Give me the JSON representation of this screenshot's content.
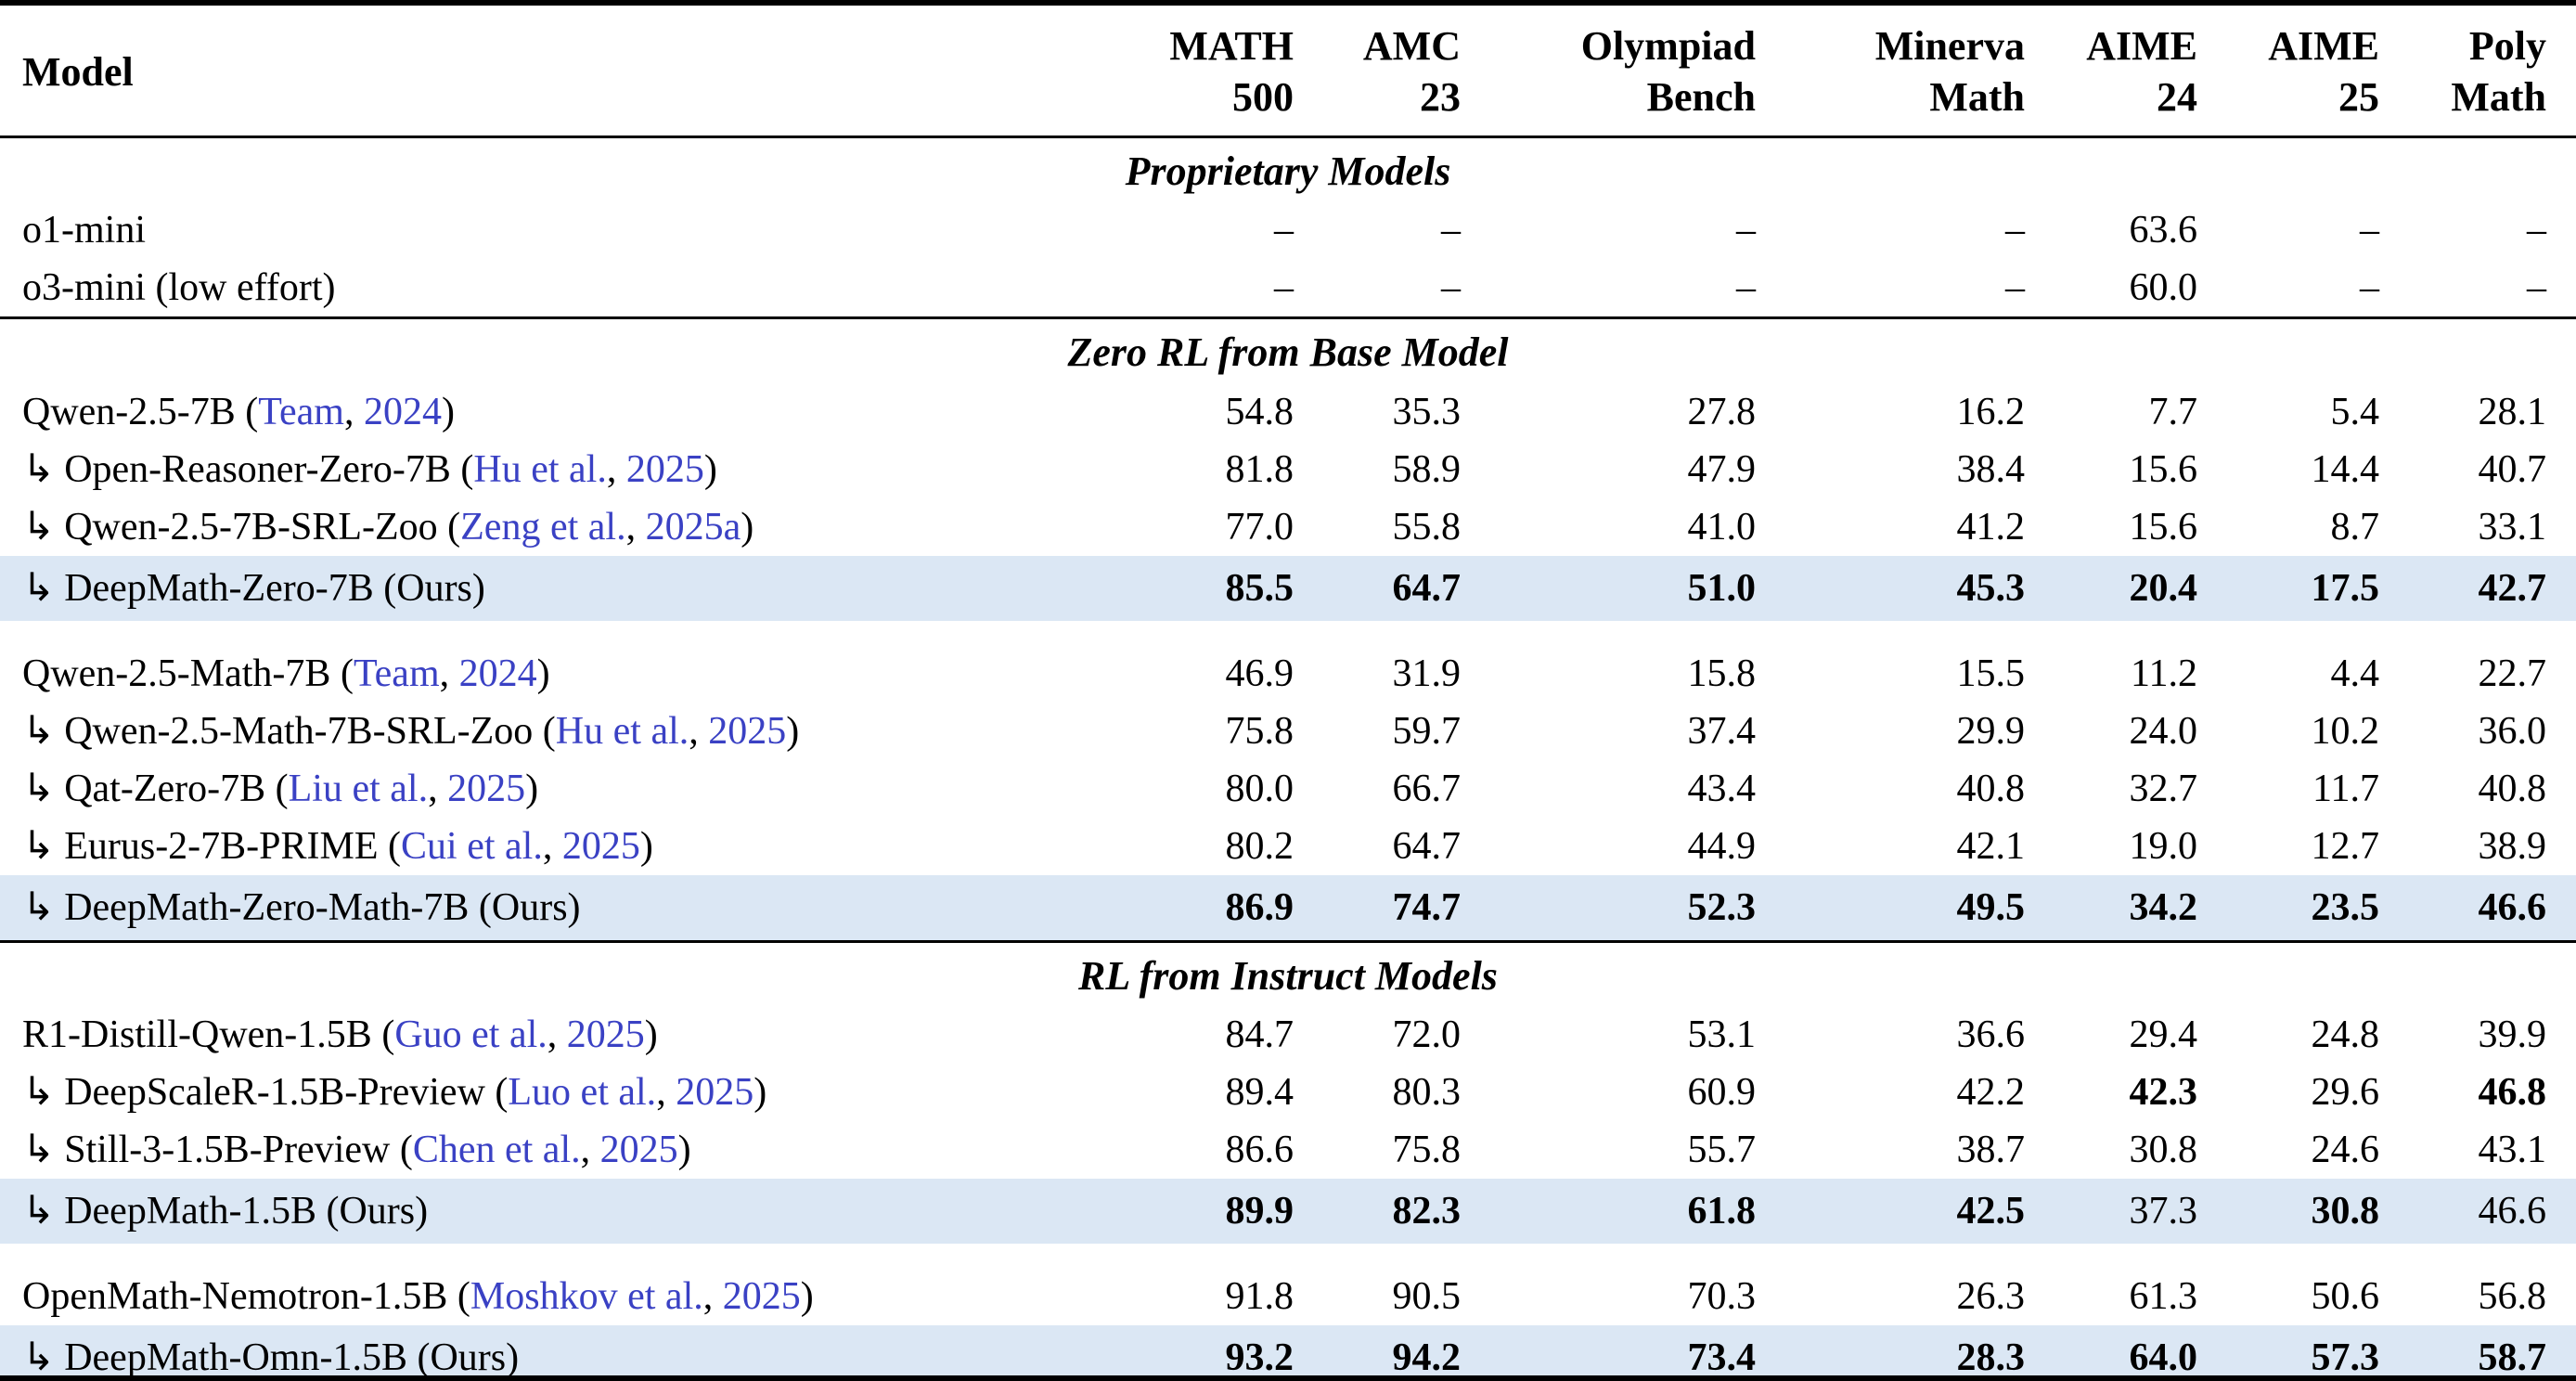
{
  "table": {
    "meta": {
      "arrow_char": "↳",
      "ours_label": "Ours",
      "dash_char": "–",
      "citation_color": "#3a41c4",
      "highlight_color": "#dbe7f4"
    },
    "header": {
      "model_label": "Model",
      "columns": [
        {
          "line1": "MATH",
          "line2": "500"
        },
        {
          "line1": "AMC",
          "line2": "23"
        },
        {
          "line1": "Olympiad",
          "line2": "Bench"
        },
        {
          "line1": "Minerva",
          "line2": "Math"
        },
        {
          "line1": "AIME",
          "line2": "24"
        },
        {
          "line1": "AIME",
          "line2": "25"
        },
        {
          "line1": "Poly",
          "line2": "Math"
        }
      ]
    },
    "sections": [
      {
        "title": "Proprietary Models",
        "groups": [
          {
            "rows": [
              {
                "arrow": false,
                "name": "o1-mini",
                "cite": null,
                "ours": false,
                "values": [
                  "–",
                  "–",
                  "–",
                  "–",
                  "63.6",
                  "–",
                  "–"
                ],
                "bold": [
                  0,
                  0,
                  0,
                  0,
                  0,
                  0,
                  0
                ]
              },
              {
                "arrow": false,
                "name": "o3-mini (low effort)",
                "cite": null,
                "ours": false,
                "values": [
                  "–",
                  "–",
                  "–",
                  "–",
                  "60.0",
                  "–",
                  "–"
                ],
                "bold": [
                  0,
                  0,
                  0,
                  0,
                  0,
                  0,
                  0
                ]
              }
            ]
          }
        ]
      },
      {
        "title": "Zero RL from Base Model",
        "groups": [
          {
            "rows": [
              {
                "arrow": false,
                "name": "Qwen-2.5-7B",
                "cite": {
                  "authors": "Team",
                  "year": "2024"
                },
                "ours": false,
                "values": [
                  "54.8",
                  "35.3",
                  "27.8",
                  "16.2",
                  "7.7",
                  "5.4",
                  "28.1"
                ],
                "bold": [
                  0,
                  0,
                  0,
                  0,
                  0,
                  0,
                  0
                ]
              },
              {
                "arrow": true,
                "name": "Open-Reasoner-Zero-7B",
                "cite": {
                  "authors": "Hu et al.",
                  "year": "2025"
                },
                "ours": false,
                "values": [
                  "81.8",
                  "58.9",
                  "47.9",
                  "38.4",
                  "15.6",
                  "14.4",
                  "40.7"
                ],
                "bold": [
                  0,
                  0,
                  0,
                  0,
                  0,
                  0,
                  0
                ]
              },
              {
                "arrow": true,
                "name": "Qwen-2.5-7B-SRL-Zoo",
                "cite": {
                  "authors": "Zeng et al.",
                  "year": "2025a"
                },
                "ours": false,
                "values": [
                  "77.0",
                  "55.8",
                  "41.0",
                  "41.2",
                  "15.6",
                  "8.7",
                  "33.1"
                ],
                "bold": [
                  0,
                  0,
                  0,
                  0,
                  0,
                  0,
                  0
                ]
              },
              {
                "arrow": true,
                "name": "DeepMath-Zero-7B",
                "cite": null,
                "ours": true,
                "values": [
                  "85.5",
                  "64.7",
                  "51.0",
                  "45.3",
                  "20.4",
                  "17.5",
                  "42.7"
                ],
                "bold": [
                  1,
                  1,
                  1,
                  1,
                  1,
                  1,
                  1
                ]
              }
            ]
          },
          {
            "rows": [
              {
                "arrow": false,
                "name": "Qwen-2.5-Math-7B",
                "cite": {
                  "authors": "Team",
                  "year": "2024"
                },
                "ours": false,
                "values": [
                  "46.9",
                  "31.9",
                  "15.8",
                  "15.5",
                  "11.2",
                  "4.4",
                  "22.7"
                ],
                "bold": [
                  0,
                  0,
                  0,
                  0,
                  0,
                  0,
                  0
                ]
              },
              {
                "arrow": true,
                "name": "Qwen-2.5-Math-7B-SRL-Zoo",
                "cite": {
                  "authors": "Hu et al.",
                  "year": "2025"
                },
                "ours": false,
                "values": [
                  "75.8",
                  "59.7",
                  "37.4",
                  "29.9",
                  "24.0",
                  "10.2",
                  "36.0"
                ],
                "bold": [
                  0,
                  0,
                  0,
                  0,
                  0,
                  0,
                  0
                ]
              },
              {
                "arrow": true,
                "name": "Qat-Zero-7B",
                "cite": {
                  "authors": "Liu et al.",
                  "year": "2025"
                },
                "ours": false,
                "values": [
                  "80.0",
                  "66.7",
                  "43.4",
                  "40.8",
                  "32.7",
                  "11.7",
                  "40.8"
                ],
                "bold": [
                  0,
                  0,
                  0,
                  0,
                  0,
                  0,
                  0
                ]
              },
              {
                "arrow": true,
                "name": "Eurus-2-7B-PRIME",
                "cite": {
                  "authors": "Cui et al.",
                  "year": "2025"
                },
                "ours": false,
                "values": [
                  "80.2",
                  "64.7",
                  "44.9",
                  "42.1",
                  "19.0",
                  "12.7",
                  "38.9"
                ],
                "bold": [
                  0,
                  0,
                  0,
                  0,
                  0,
                  0,
                  0
                ]
              },
              {
                "arrow": true,
                "name": "DeepMath-Zero-Math-7B",
                "cite": null,
                "ours": true,
                "values": [
                  "86.9",
                  "74.7",
                  "52.3",
                  "49.5",
                  "34.2",
                  "23.5",
                  "46.6"
                ],
                "bold": [
                  1,
                  1,
                  1,
                  1,
                  1,
                  1,
                  1
                ]
              }
            ]
          }
        ]
      },
      {
        "title": "RL from Instruct Models",
        "groups": [
          {
            "rows": [
              {
                "arrow": false,
                "name": "R1-Distill-Qwen-1.5B",
                "cite": {
                  "authors": "Guo et al.",
                  "year": "2025"
                },
                "ours": false,
                "values": [
                  "84.7",
                  "72.0",
                  "53.1",
                  "36.6",
                  "29.4",
                  "24.8",
                  "39.9"
                ],
                "bold": [
                  0,
                  0,
                  0,
                  0,
                  0,
                  0,
                  0
                ]
              },
              {
                "arrow": true,
                "name": "DeepScaleR-1.5B-Preview",
                "cite": {
                  "authors": "Luo et al.",
                  "year": "2025"
                },
                "ours": false,
                "values": [
                  "89.4",
                  "80.3",
                  "60.9",
                  "42.2",
                  "42.3",
                  "29.6",
                  "46.8"
                ],
                "bold": [
                  0,
                  0,
                  0,
                  0,
                  1,
                  0,
                  1
                ]
              },
              {
                "arrow": true,
                "name": "Still-3-1.5B-Preview",
                "cite": {
                  "authors": "Chen et al.",
                  "year": "2025"
                },
                "ours": false,
                "values": [
                  "86.6",
                  "75.8",
                  "55.7",
                  "38.7",
                  "30.8",
                  "24.6",
                  "43.1"
                ],
                "bold": [
                  0,
                  0,
                  0,
                  0,
                  0,
                  0,
                  0
                ]
              },
              {
                "arrow": true,
                "name": "DeepMath-1.5B",
                "cite": null,
                "ours": true,
                "values": [
                  "89.9",
                  "82.3",
                  "61.8",
                  "42.5",
                  "37.3",
                  "30.8",
                  "46.6"
                ],
                "bold": [
                  1,
                  1,
                  1,
                  1,
                  0,
                  1,
                  0
                ]
              }
            ]
          },
          {
            "rows": [
              {
                "arrow": false,
                "name": "OpenMath-Nemotron-1.5B",
                "cite": {
                  "authors": "Moshkov et al.",
                  "year": "2025"
                },
                "ours": false,
                "values": [
                  "91.8",
                  "90.5",
                  "70.3",
                  "26.3",
                  "61.3",
                  "50.6",
                  "56.8"
                ],
                "bold": [
                  0,
                  0,
                  0,
                  0,
                  0,
                  0,
                  0
                ]
              },
              {
                "arrow": true,
                "name": "DeepMath-Omn-1.5B",
                "cite": null,
                "ours": true,
                "values": [
                  "93.2",
                  "94.2",
                  "73.4",
                  "28.3",
                  "64.0",
                  "57.3",
                  "58.7"
                ],
                "bold": [
                  1,
                  1,
                  1,
                  1,
                  1,
                  1,
                  1
                ]
              }
            ]
          }
        ]
      }
    ]
  }
}
